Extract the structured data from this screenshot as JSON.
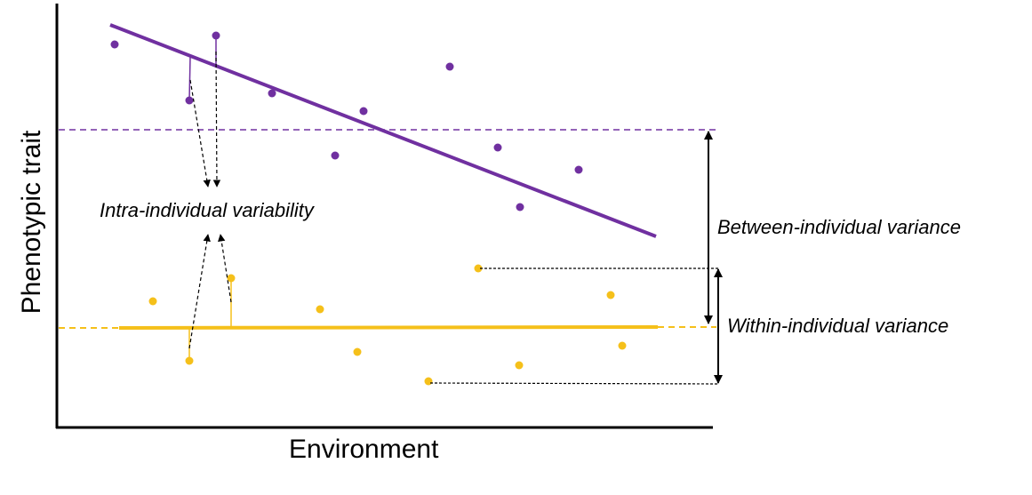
{
  "labels": {
    "x_axis": "Environment",
    "y_axis": "Phenotypic trait",
    "intra": "Intra-individual variability",
    "between": "Between-individual variance",
    "within": "Within-individual variance"
  },
  "colors": {
    "individual_a": "#7030a0",
    "individual_b": "#f5c01a",
    "axis": "#000000"
  }
}
